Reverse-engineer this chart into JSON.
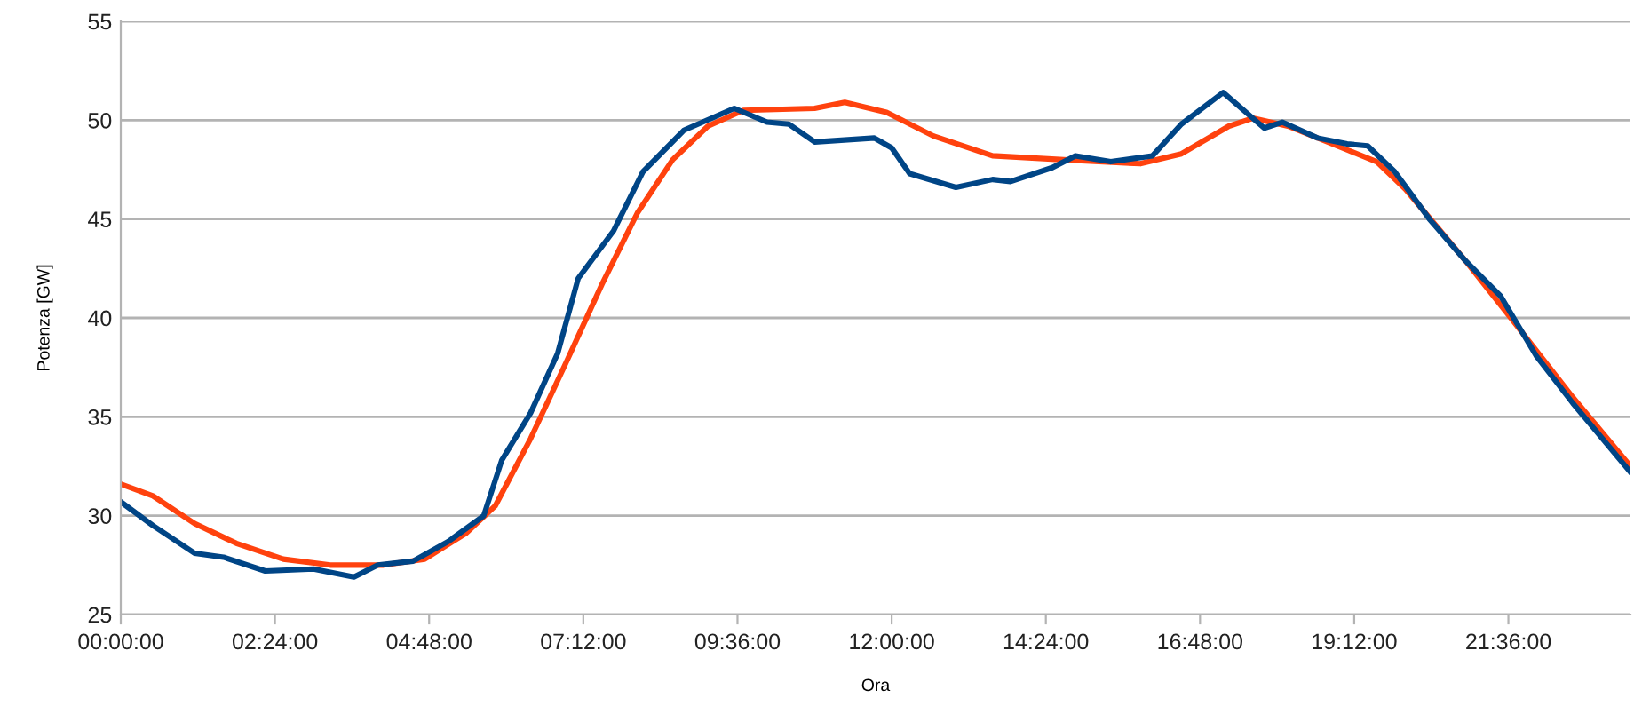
{
  "chart_data": {
    "type": "line",
    "xlabel": "Ora",
    "ylabel": "Potenza [GW]",
    "xlim": [
      0,
      23.5
    ],
    "ylim": [
      25,
      55
    ],
    "xticks": [
      {
        "value": 0,
        "label": "00:00:00"
      },
      {
        "value": 2.4,
        "label": "02:24:00"
      },
      {
        "value": 4.8,
        "label": "04:48:00"
      },
      {
        "value": 7.2,
        "label": "07:12:00"
      },
      {
        "value": 9.6,
        "label": "09:36:00"
      },
      {
        "value": 12,
        "label": "12:00:00"
      },
      {
        "value": 14.4,
        "label": "14:24:00"
      },
      {
        "value": 16.8,
        "label": "16:48:00"
      },
      {
        "value": 19.2,
        "label": "19:12:00"
      },
      {
        "value": 21.6,
        "label": "21:36:00"
      }
    ],
    "yticks": [
      25,
      30,
      35,
      40,
      45,
      50,
      55
    ],
    "grid": "y",
    "marker": "none",
    "line_style": "solid",
    "series": [
      {
        "color": "#ff420e",
        "x": [
          0,
          0.5,
          1.15,
          1.8,
          2.53,
          3.26,
          4.09,
          4.73,
          5.37,
          5.83,
          6.38,
          6.94,
          7.49,
          8.04,
          8.59,
          9.14,
          9.69,
          10.8,
          11.27,
          11.92,
          12.65,
          13.57,
          14.68,
          15.87,
          16.51,
          17.25,
          17.62,
          18.17,
          19.09,
          19.55,
          20.0,
          20.93,
          21.66,
          22.6,
          23.5
        ],
        "values": [
          31.6,
          31.0,
          29.6,
          28.6,
          27.8,
          27.5,
          27.5,
          27.8,
          29.1,
          30.5,
          33.9,
          37.8,
          41.7,
          45.3,
          48.0,
          49.7,
          50.5,
          50.6,
          50.9,
          50.4,
          49.2,
          48.2,
          48.0,
          47.8,
          48.3,
          49.7,
          50.1,
          49.7,
          48.5,
          47.9,
          46.5,
          42.9,
          39.9,
          36.0,
          32.5
        ]
      },
      {
        "color": "#004586",
        "x": [
          0,
          0.5,
          1.15,
          1.6,
          2.25,
          3.0,
          3.63,
          4.0,
          4.55,
          5.1,
          5.65,
          5.93,
          6.38,
          6.8,
          7.12,
          7.67,
          8.13,
          8.77,
          9.55,
          10.06,
          10.4,
          10.8,
          11.73,
          12.0,
          12.28,
          13.0,
          13.57,
          13.85,
          14.5,
          14.86,
          15.41,
          16.06,
          16.51,
          17.16,
          17.8,
          18.08,
          18.63,
          19.09,
          19.41,
          19.83,
          20.37,
          20.93,
          21.48,
          22.03,
          22.6,
          23.5
        ],
        "values": [
          30.7,
          29.5,
          28.1,
          27.9,
          27.2,
          27.3,
          26.9,
          27.5,
          27.7,
          28.7,
          30.0,
          32.8,
          35.2,
          38.2,
          42.0,
          44.4,
          47.4,
          49.5,
          50.6,
          49.9,
          49.8,
          48.9,
          49.1,
          48.6,
          47.3,
          46.6,
          47.0,
          46.9,
          47.6,
          48.2,
          47.9,
          48.2,
          49.8,
          51.4,
          49.6,
          49.9,
          49.1,
          48.8,
          48.7,
          47.4,
          45.0,
          42.9,
          41.1,
          38.1,
          35.7,
          32.2
        ]
      }
    ]
  }
}
